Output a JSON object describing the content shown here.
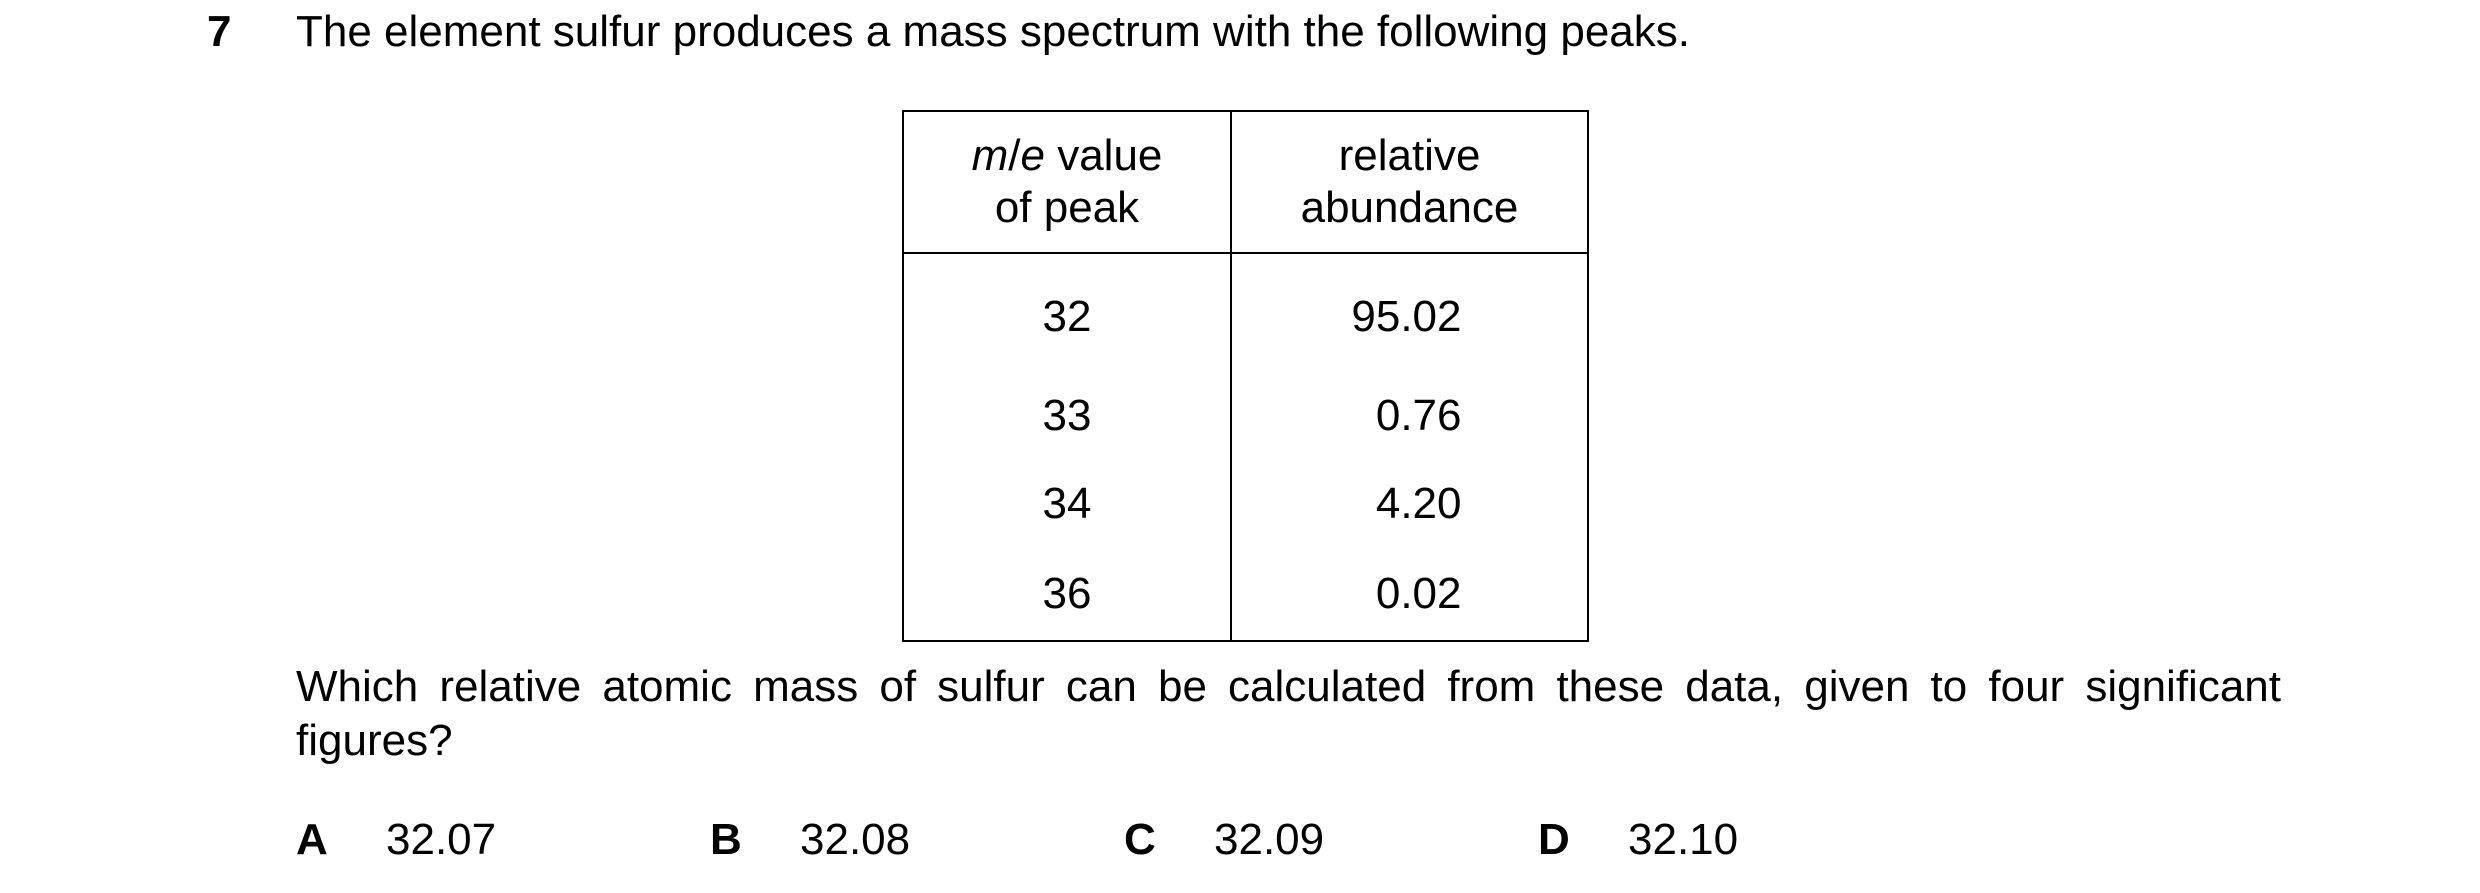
{
  "question": {
    "number": "7",
    "stem": "The element sulfur produces a mass spectrum with the following peaks.",
    "prompt": "Which relative atomic mass of sulfur can be calculated from these data, given to four significant figures?"
  },
  "table": {
    "header_col1_italic_m": "m",
    "header_col1_slash": "/",
    "header_col1_italic_e": "e",
    "header_col1_rest": "value",
    "header_col1_line2": "of peak",
    "header_col2_line1": "relative",
    "header_col2_line2": "abundance",
    "rows": [
      {
        "mz": "32",
        "abundance": "95.02"
      },
      {
        "mz": "33",
        "abundance": "0.76"
      },
      {
        "mz": "34",
        "abundance": "4.20"
      },
      {
        "mz": "36",
        "abundance": "0.02"
      }
    ]
  },
  "options": [
    {
      "letter": "A",
      "value": "32.07"
    },
    {
      "letter": "B",
      "value": "32.08"
    },
    {
      "letter": "C",
      "value": "32.09"
    },
    {
      "letter": "D",
      "value": "32.10"
    }
  ]
}
